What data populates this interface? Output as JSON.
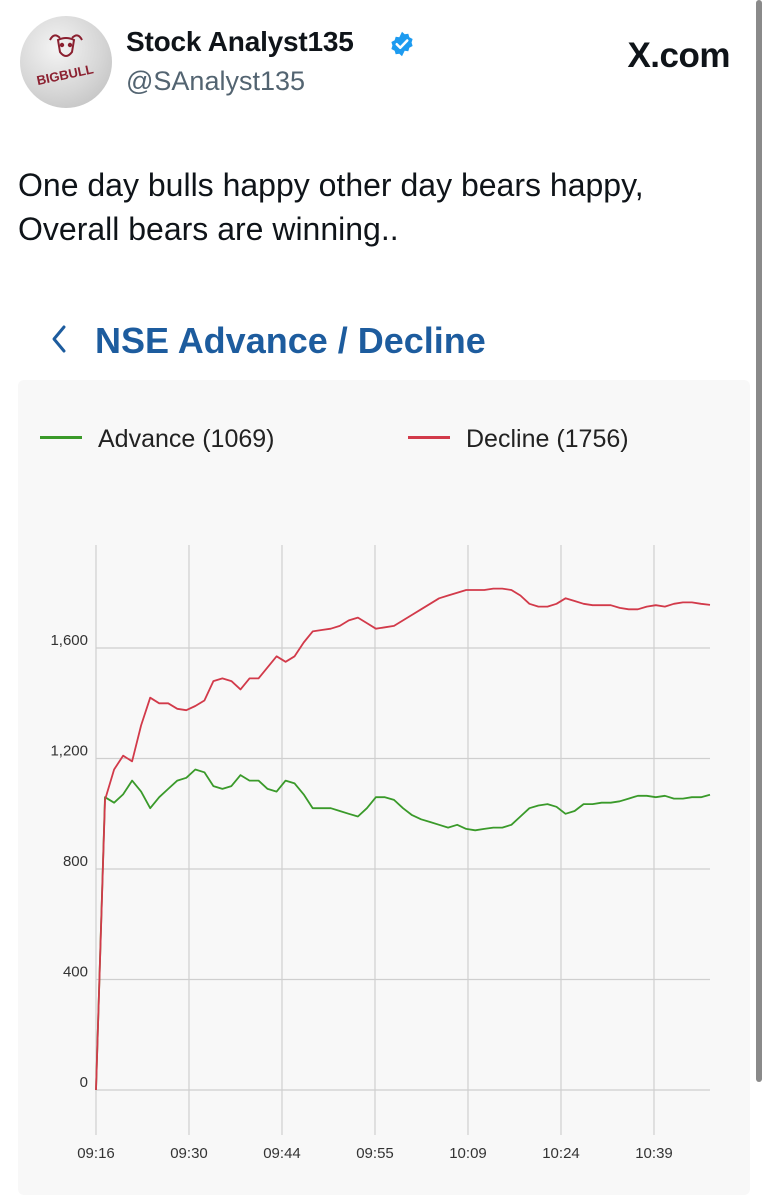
{
  "post": {
    "display_name": "Stock Analyst135",
    "handle": "@SAnalyst135",
    "source": "X.com",
    "avatar_text": "BIGBULL",
    "text_line1": "One day bulls happy other day bears happy,",
    "text_line2": "Overall bears are winning.."
  },
  "colors": {
    "verified": "#1d9bf0",
    "title": "#1d5c9e",
    "advance": "#3a9a2a",
    "decline": "#d23a4a"
  },
  "chart_data": {
    "type": "line",
    "title": "NSE Advance / Decline",
    "x_tick_labels": [
      "09:16",
      "09:30",
      "09:44",
      "09:55",
      "10:09",
      "10:24",
      "10:39"
    ],
    "y_tick_labels": [
      "0",
      "400",
      "800",
      "1,200",
      "1,600"
    ],
    "ylim": [
      0,
      2000
    ],
    "grid": true,
    "legend_position": "top",
    "series": [
      {
        "name": "Advance (1069)",
        "color": "#3a9a2a",
        "values": [
          0,
          1060,
          1040,
          1070,
          1120,
          1080,
          1020,
          1060,
          1090,
          1120,
          1130,
          1160,
          1150,
          1100,
          1090,
          1100,
          1140,
          1120,
          1120,
          1090,
          1080,
          1120,
          1110,
          1070,
          1020,
          1020,
          1020,
          1010,
          1000,
          990,
          1020,
          1060,
          1060,
          1050,
          1020,
          995,
          980,
          970,
          960,
          950,
          960,
          945,
          940,
          945,
          950,
          950,
          960,
          990,
          1020,
          1030,
          1035,
          1025,
          1000,
          1010,
          1035,
          1035,
          1040,
          1040,
          1045,
          1055,
          1065,
          1065,
          1060,
          1065,
          1055,
          1055,
          1060,
          1060,
          1069
        ]
      },
      {
        "name": "Decline (1756)",
        "color": "#d23a4a",
        "values": [
          0,
          1050,
          1160,
          1210,
          1190,
          1320,
          1420,
          1400,
          1400,
          1380,
          1375,
          1390,
          1410,
          1480,
          1490,
          1480,
          1450,
          1490,
          1490,
          1530,
          1570,
          1550,
          1570,
          1620,
          1660,
          1665,
          1670,
          1680,
          1700,
          1710,
          1690,
          1670,
          1675,
          1680,
          1700,
          1720,
          1740,
          1760,
          1780,
          1790,
          1800,
          1810,
          1810,
          1810,
          1815,
          1815,
          1810,
          1790,
          1760,
          1750,
          1750,
          1760,
          1780,
          1770,
          1760,
          1755,
          1755,
          1755,
          1745,
          1740,
          1740,
          1750,
          1755,
          1750,
          1760,
          1765,
          1765,
          1760,
          1756
        ]
      }
    ]
  }
}
